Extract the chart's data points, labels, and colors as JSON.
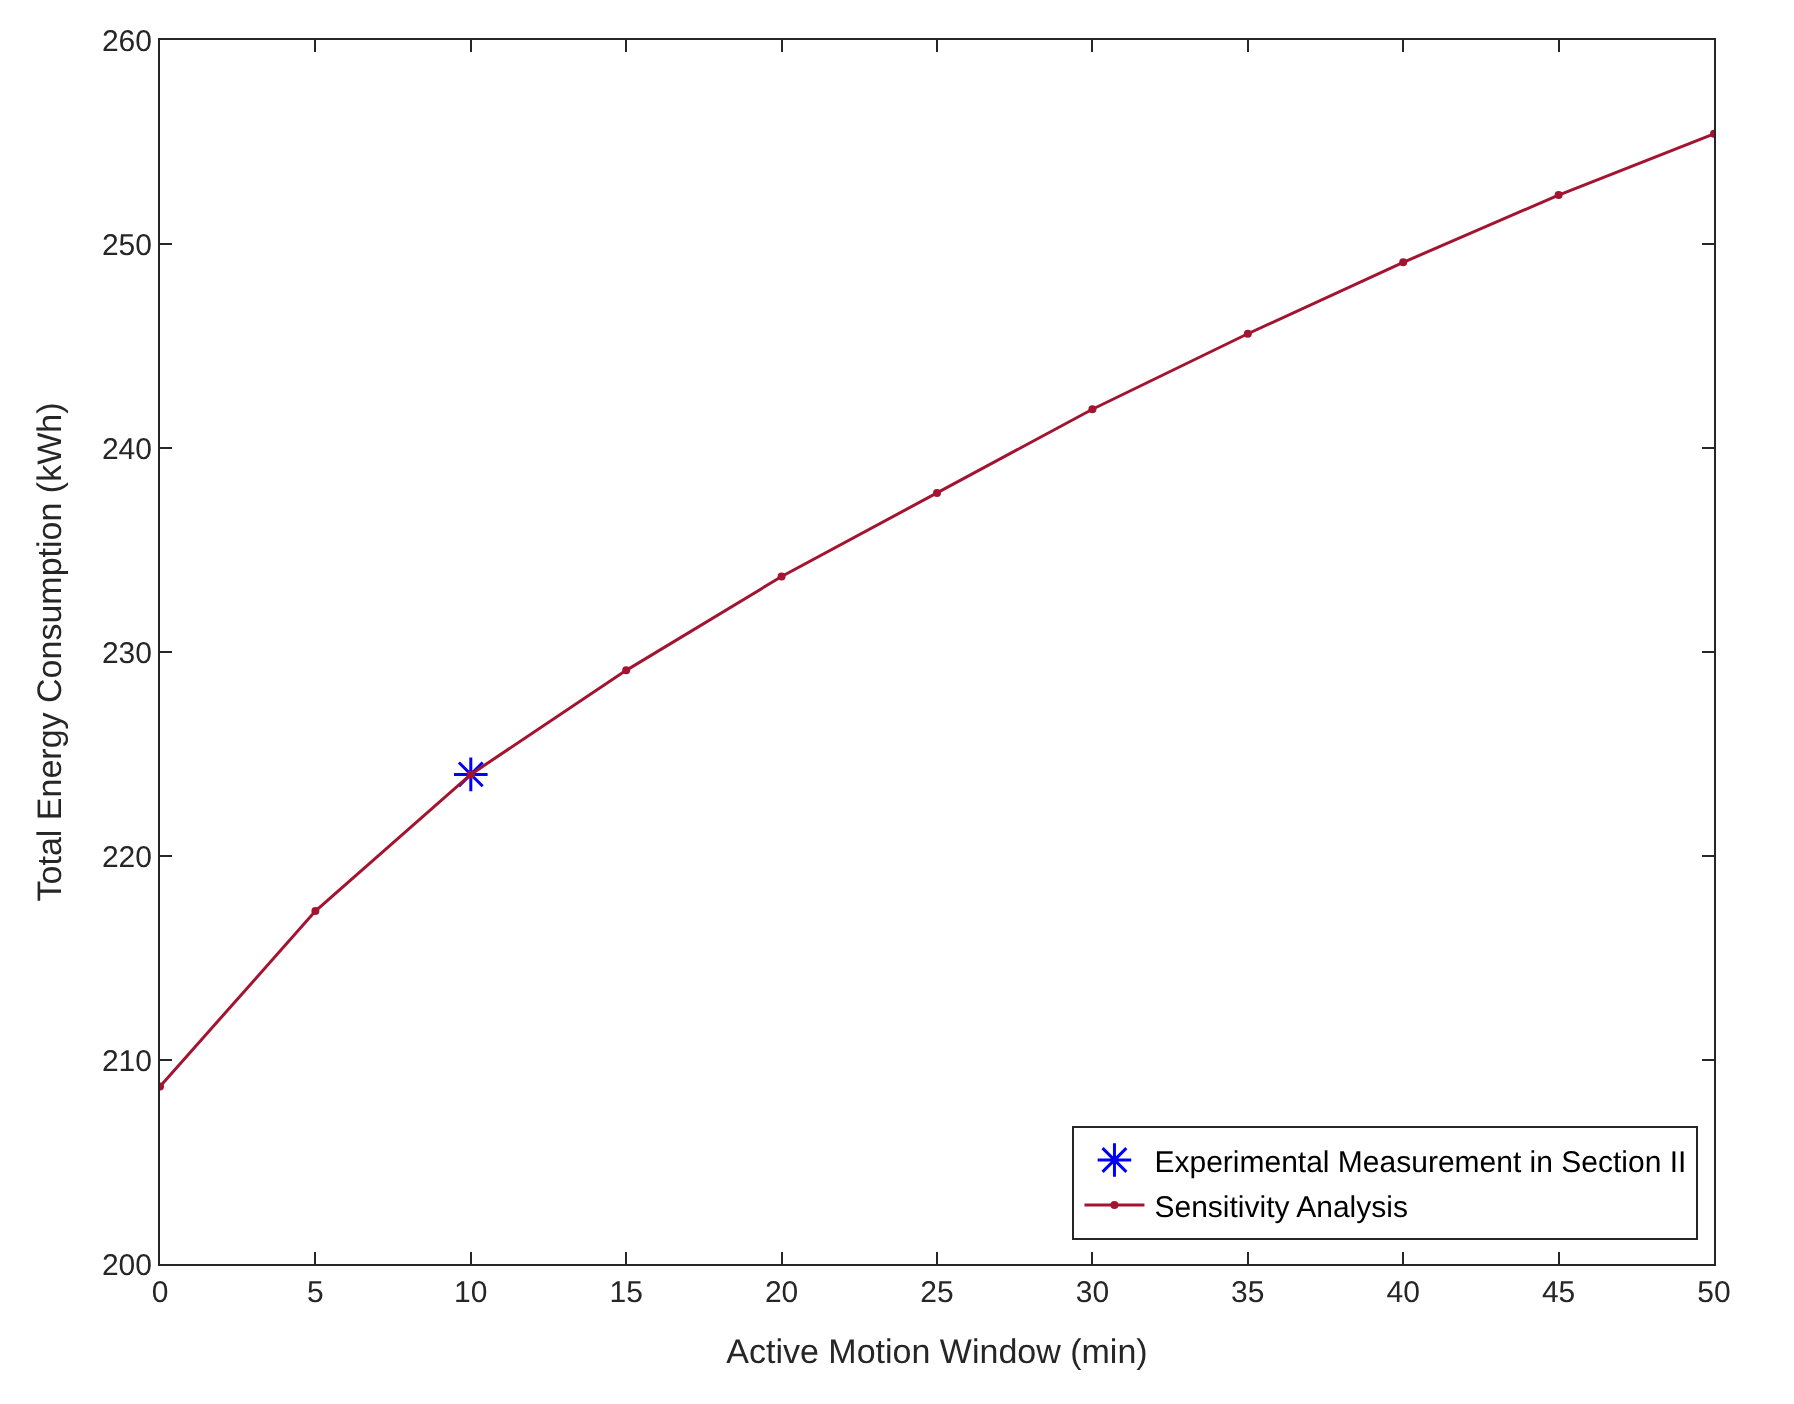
{
  "chart_data": {
    "type": "line",
    "xlabel": "Active Motion Window (min)",
    "ylabel": "Total Energy Consumption (kWh)",
    "xlim": [
      0,
      50
    ],
    "xticks": [
      0,
      5,
      10,
      15,
      20,
      25,
      30,
      35,
      40,
      45,
      50
    ],
    "ylim": [
      200,
      260
    ],
    "yticks": [
      200,
      210,
      220,
      230,
      240,
      250,
      260
    ],
    "legend": "bottom right",
    "series": [
      {
        "name": "Experimental Measurement in Section II",
        "type": "scatter",
        "marker": "cross",
        "color": "#0000ff",
        "x": [
          10
        ],
        "values": [
          224.0
        ]
      },
      {
        "name": "Sensitivity Analysis",
        "marker": "circle",
        "line_style": "solid",
        "color": "#a2142f",
        "x": [
          0,
          5,
          10,
          15,
          20,
          25,
          30,
          35,
          40,
          45,
          50
        ],
        "values": [
          208.7,
          217.3,
          224.0,
          229.1,
          233.7,
          237.8,
          241.9,
          245.6,
          249.1,
          252.4,
          255.4
        ]
      }
    ]
  }
}
